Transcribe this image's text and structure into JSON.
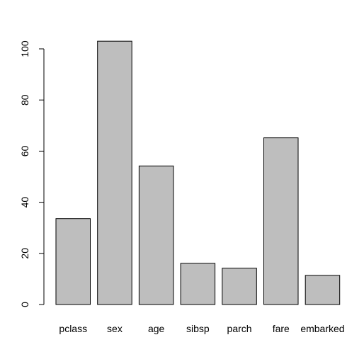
{
  "chart_data": {
    "type": "bar",
    "categories": [
      "pclass",
      "sex",
      "age",
      "sibsp",
      "parch",
      "fare",
      "embarked"
    ],
    "values": [
      33.6,
      103.0,
      54.2,
      16.1,
      14.2,
      65.2,
      11.4
    ],
    "title": "",
    "xlabel": "",
    "ylabel": "",
    "ylim": [
      0,
      100
    ],
    "yticks": [
      0,
      20,
      40,
      60,
      80,
      100
    ],
    "ytick_labels": [
      "0",
      "20",
      "40",
      "60",
      "80",
      "100"
    ],
    "grid": false,
    "legend": "none",
    "bar_color": "#bebebe",
    "bar_edge_color": "#000000"
  }
}
